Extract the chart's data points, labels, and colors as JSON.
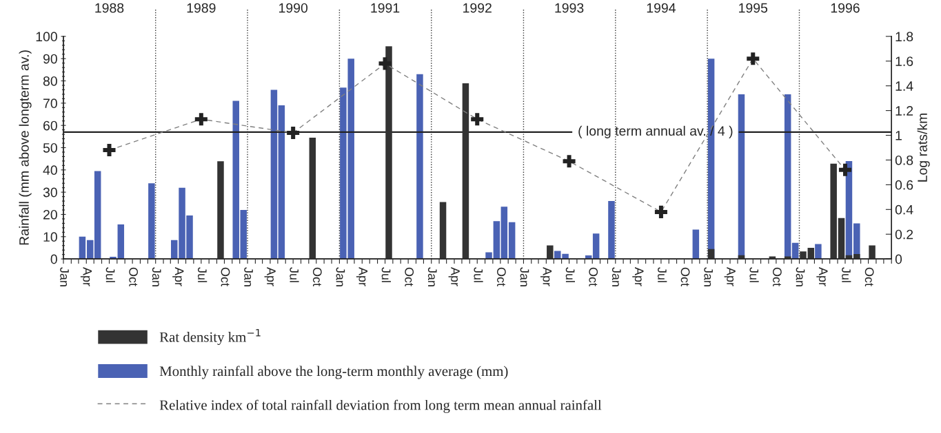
{
  "chart_data": {
    "type": "bar",
    "ylabel": "Rainfall (mm above longterm av.)",
    "y2label": "Log rats/km",
    "xlim": [
      "1988-01",
      "1997-01"
    ],
    "xticks": [
      {
        "value": "1988-01",
        "label": "Jan"
      },
      {
        "value": "1988-02",
        "label": null
      },
      {
        "value": "1988-03",
        "label": null
      },
      {
        "value": "1988-04",
        "label": "Apr"
      },
      {
        "value": "1988-05",
        "label": null
      },
      {
        "value": "1988-06",
        "label": null
      },
      {
        "value": "1988-07",
        "label": "Jul"
      },
      {
        "value": "1988-08",
        "label": null
      },
      {
        "value": "1988-09",
        "label": null
      },
      {
        "value": "1988-10",
        "label": "Oct"
      },
      {
        "value": "1988-11",
        "label": null
      },
      {
        "value": "1988-12",
        "label": null
      },
      {
        "value": "1989-01",
        "label": "Jan"
      },
      {
        "value": "1989-02",
        "label": null
      },
      {
        "value": "1989-03",
        "label": null
      },
      {
        "value": "1989-04",
        "label": "Apr"
      },
      {
        "value": "1989-05",
        "label": null
      },
      {
        "value": "1989-06",
        "label": null
      },
      {
        "value": "1989-07",
        "label": "Jul"
      },
      {
        "value": "1989-08",
        "label": null
      },
      {
        "value": "1989-09",
        "label": null
      },
      {
        "value": "1989-10",
        "label": "Oct"
      },
      {
        "value": "1989-11",
        "label": null
      },
      {
        "value": "1989-12",
        "label": null
      },
      {
        "value": "1990-01",
        "label": "Jan"
      },
      {
        "value": "1990-02",
        "label": null
      },
      {
        "value": "1990-03",
        "label": null
      },
      {
        "value": "1990-04",
        "label": "Apr"
      },
      {
        "value": "1990-05",
        "label": null
      },
      {
        "value": "1990-06",
        "label": null
      },
      {
        "value": "1990-07",
        "label": "Jul"
      },
      {
        "value": "1990-08",
        "label": null
      },
      {
        "value": "1990-09",
        "label": null
      },
      {
        "value": "1990-10",
        "label": "Oct"
      },
      {
        "value": "1990-11",
        "label": null
      },
      {
        "value": "1990-12",
        "label": null
      },
      {
        "value": "1991-01",
        "label": "Jan"
      },
      {
        "value": "1991-02",
        "label": null
      },
      {
        "value": "1991-03",
        "label": null
      },
      {
        "value": "1991-04",
        "label": "Apr"
      },
      {
        "value": "1991-05",
        "label": null
      },
      {
        "value": "1991-06",
        "label": null
      },
      {
        "value": "1991-07",
        "label": "Jul"
      },
      {
        "value": "1991-08",
        "label": null
      },
      {
        "value": "1991-09",
        "label": null
      },
      {
        "value": "1991-10",
        "label": "Oct"
      },
      {
        "value": "1991-11",
        "label": null
      },
      {
        "value": "1991-12",
        "label": null
      },
      {
        "value": "1992-01",
        "label": "Jan"
      },
      {
        "value": "1992-02",
        "label": null
      },
      {
        "value": "1992-03",
        "label": null
      },
      {
        "value": "1992-04",
        "label": "Apr"
      },
      {
        "value": "1992-05",
        "label": null
      },
      {
        "value": "1992-06",
        "label": null
      },
      {
        "value": "1992-07",
        "label": "Jul"
      },
      {
        "value": "1992-08",
        "label": null
      },
      {
        "value": "1992-09",
        "label": null
      },
      {
        "value": "1992-10",
        "label": "Oct"
      },
      {
        "value": "1992-11",
        "label": null
      },
      {
        "value": "1992-12",
        "label": null
      },
      {
        "value": "1993-01",
        "label": "Jan"
      },
      {
        "value": "1993-02",
        "label": null
      },
      {
        "value": "1993-03",
        "label": null
      },
      {
        "value": "1993-04",
        "label": "Apr"
      },
      {
        "value": "1993-05",
        "label": null
      },
      {
        "value": "1993-06",
        "label": null
      },
      {
        "value": "1993-07",
        "label": "Jul"
      },
      {
        "value": "1993-08",
        "label": null
      },
      {
        "value": "1993-09",
        "label": null
      },
      {
        "value": "1993-10",
        "label": "Oct"
      },
      {
        "value": "1993-11",
        "label": null
      },
      {
        "value": "1993-12",
        "label": null
      },
      {
        "value": "1994-01",
        "label": "Jan"
      },
      {
        "value": "1994-02",
        "label": null
      },
      {
        "value": "1994-03",
        "label": null
      },
      {
        "value": "1994-04",
        "label": "Apr"
      },
      {
        "value": "1994-05",
        "label": null
      },
      {
        "value": "1994-06",
        "label": null
      },
      {
        "value": "1994-07",
        "label": "Jul"
      },
      {
        "value": "1994-08",
        "label": null
      },
      {
        "value": "1994-09",
        "label": null
      },
      {
        "value": "1994-10",
        "label": "Oct"
      },
      {
        "value": "1994-11",
        "label": null
      },
      {
        "value": "1994-12",
        "label": null
      },
      {
        "value": "1995-01",
        "label": "Jan"
      },
      {
        "value": "1995-02",
        "label": null
      },
      {
        "value": "1995-03",
        "label": null
      },
      {
        "value": "1995-04",
        "label": "Apr"
      },
      {
        "value": "1995-05",
        "label": null
      },
      {
        "value": "1995-06",
        "label": null
      },
      {
        "value": "1995-07",
        "label": "Jul"
      },
      {
        "value": "1995-08",
        "label": null
      },
      {
        "value": "1995-09",
        "label": null
      },
      {
        "value": "1995-10",
        "label": "Oct"
      },
      {
        "value": "1995-11",
        "label": null
      },
      {
        "value": "1995-12",
        "label": null
      },
      {
        "value": "1996-01",
        "label": "Jan"
      },
      {
        "value": "1996-02",
        "label": null
      },
      {
        "value": "1996-03",
        "label": null
      },
      {
        "value": "1996-04",
        "label": "Apr"
      },
      {
        "value": "1996-05",
        "label": null
      },
      {
        "value": "1996-06",
        "label": null
      },
      {
        "value": "1996-07",
        "label": "Jul"
      },
      {
        "value": "1996-08",
        "label": null
      },
      {
        "value": "1996-09",
        "label": null
      },
      {
        "value": "1996-10",
        "label": "Oct"
      },
      {
        "value": "1996-11",
        "label": null
      },
      {
        "value": "1996-12",
        "label": null
      },
      {
        "value": "1997-01",
        "label": null
      }
    ],
    "x2lim": [
      "1988-01",
      "1997-01"
    ],
    "x2ticks": [
      {
        "value": "1988-07",
        "label": "1988"
      },
      {
        "value": "1989-07",
        "label": "1989"
      },
      {
        "value": "1990-07",
        "label": "1990"
      },
      {
        "value": "1991-07",
        "label": "1991"
      },
      {
        "value": "1992-07",
        "label": "1992"
      },
      {
        "value": "1993-07",
        "label": "1993"
      },
      {
        "value": "1994-07",
        "label": "1994"
      },
      {
        "value": "1995-07",
        "label": "1995"
      },
      {
        "value": "1996-07",
        "label": "1996"
      }
    ],
    "ylim": [
      0,
      100
    ],
    "yticks": [
      0,
      {
        "value": 2,
        "label": null
      },
      {
        "value": 4,
        "label": null
      },
      {
        "value": 6,
        "label": null
      },
      {
        "value": 8,
        "label": null
      },
      10,
      {
        "value": 12,
        "label": null
      },
      {
        "value": 14,
        "label": null
      },
      {
        "value": 16,
        "label": null
      },
      {
        "value": 18,
        "label": null
      },
      20,
      {
        "value": 22,
        "label": null
      },
      {
        "value": 24,
        "label": null
      },
      {
        "value": 26,
        "label": null
      },
      {
        "value": 28,
        "label": null
      },
      30,
      {
        "value": 32,
        "label": null
      },
      {
        "value": 34,
        "label": null
      },
      {
        "value": 36,
        "label": null
      },
      {
        "value": 38,
        "label": null
      },
      40,
      {
        "value": 42,
        "label": null
      },
      {
        "value": 44,
        "label": null
      },
      {
        "value": 46,
        "label": null
      },
      {
        "value": 48,
        "label": null
      },
      50,
      {
        "value": 52,
        "label": null
      },
      {
        "value": 54,
        "label": null
      },
      {
        "value": 56,
        "label": null
      },
      {
        "value": 58,
        "label": null
      },
      60,
      {
        "value": 62,
        "label": null
      },
      {
        "value": 64,
        "label": null
      },
      {
        "value": 66,
        "label": null
      },
      {
        "value": 68,
        "label": null
      },
      70,
      {
        "value": 72,
        "label": null
      },
      {
        "value": 74,
        "label": null
      },
      {
        "value": 76,
        "label": null
      },
      {
        "value": 78,
        "label": null
      },
      80,
      {
        "value": 82,
        "label": null
      },
      {
        "value": 84,
        "label": null
      },
      {
        "value": 86,
        "label": null
      },
      {
        "value": 88,
        "label": null
      },
      90,
      {
        "value": 92,
        "label": null
      },
      {
        "value": 94,
        "label": null
      },
      {
        "value": 96,
        "label": null
      },
      {
        "value": 98,
        "label": null
      },
      100
    ],
    "y2lim": [
      0,
      1.8
    ],
    "y2ticks": [
      0,
      0.2,
      0.4,
      0.6,
      0.8,
      1,
      1.2,
      1.4,
      1.6,
      1.8
    ],
    "series": [
      {
        "name": "Monthly rainfall above the long-term monthly average (mm)",
        "color": "#4a62b4",
        "x": [
          "1988-03-16",
          "1988-04-16",
          "1988-05-16",
          "1988-07-16",
          "1988-08-16",
          "1988-12-16",
          "1989-03-16",
          "1989-04-16",
          "1989-05-16",
          "1989-11-16",
          "1989-12-16",
          "1990-04-16",
          "1990-05-16",
          "1991-01-16",
          "1991-02-16",
          "1991-11-16",
          "1992-08-16",
          "1992-09-16",
          "1992-10-16",
          "1992-11-16",
          "1993-05-16",
          "1993-06-16",
          "1993-09-16",
          "1993-10-16",
          "1993-12-16",
          "1994-11-16",
          "1995-01-16",
          "1995-05-16",
          "1995-11-16",
          "1995-12-16",
          "1996-03-16",
          "1996-07-16",
          "1996-08-16"
        ],
        "values": [
          10,
          8.5,
          39.5,
          1,
          15.5,
          34,
          8.5,
          32,
          19.5,
          71,
          22,
          76,
          69,
          77,
          90,
          83,
          3,
          17,
          23.5,
          16.5,
          3.6,
          2.3,
          1.6,
          11.4,
          26,
          13.2,
          90,
          74,
          74,
          7.2,
          6.7,
          44,
          16
        ]
      },
      {
        "name": "Rat density km$^{−1}$",
        "type": "bar",
        "axis": "y2",
        "color": "#333333",
        "x": [
          "1989-09-16",
          "1990-09-16",
          "1991-07-16",
          "1992-02-16",
          "1992-05-16",
          "1992-09-16",
          "1993-04-16",
          "1995-01-16",
          "1995-05-16",
          "1995-09-16",
          "1995-11-16",
          "1996-01-16",
          "1996-02-16",
          "1996-05-16",
          "1996-06-16",
          "1996-07-16",
          "1996-08-16",
          "1996-09-16",
          "1996-10-16"
        ],
        "values": [
          0.79,
          0.98,
          1.72,
          0.46,
          1.42,
          null,
          0.11,
          0.08,
          0.03,
          0.02,
          0.02,
          0.06,
          0.09,
          0.77,
          0.33,
          0.03,
          0.04,
          null,
          0.11
        ]
      },
      {
        "name": "Relative index of total rainfall deviation from long term mean annual rainfall",
        "type": "line",
        "axis": "y2",
        "color": "#808080",
        "line_style": "dashed",
        "marker": "cross",
        "x": [
          "1988-07",
          "1989-07",
          "1990-07",
          "1991-07",
          "1992-07",
          "1993-07",
          "1994-07",
          "1995-07",
          "1996-07"
        ],
        "values": [
          0.88,
          1.13,
          1.02,
          1.58,
          1.13,
          0.79,
          0.38,
          1.62,
          0.72
        ]
      }
    ],
    "ref_lines": [
      {
        "axis": "y",
        "value": 57,
        "label": "( long term annual av. / 4 )",
        "color": "#222222",
        "line_style": "solid"
      },
      {
        "axis": "x",
        "value": "1989-01",
        "color": "#333333",
        "line_style": "dotted"
      },
      {
        "axis": "x",
        "value": "1990-01",
        "color": "#333333",
        "line_style": "dotted"
      },
      {
        "axis": "x",
        "value": "1991-01",
        "color": "#333333",
        "line_style": "dotted"
      },
      {
        "axis": "x",
        "value": "1992-01",
        "color": "#333333",
        "line_style": "dotted"
      },
      {
        "axis": "x",
        "value": "1993-01",
        "color": "#333333",
        "line_style": "dotted"
      },
      {
        "axis": "x",
        "value": "1994-01",
        "color": "#333333",
        "line_style": "dotted"
      },
      {
        "axis": "x",
        "value": "1995-01",
        "color": "#333333",
        "line_style": "dotted"
      },
      {
        "axis": "x",
        "value": "1996-01",
        "color": "#333333",
        "line_style": "dotted"
      }
    ],
    "legend": "bottom",
    "grid": false
  }
}
